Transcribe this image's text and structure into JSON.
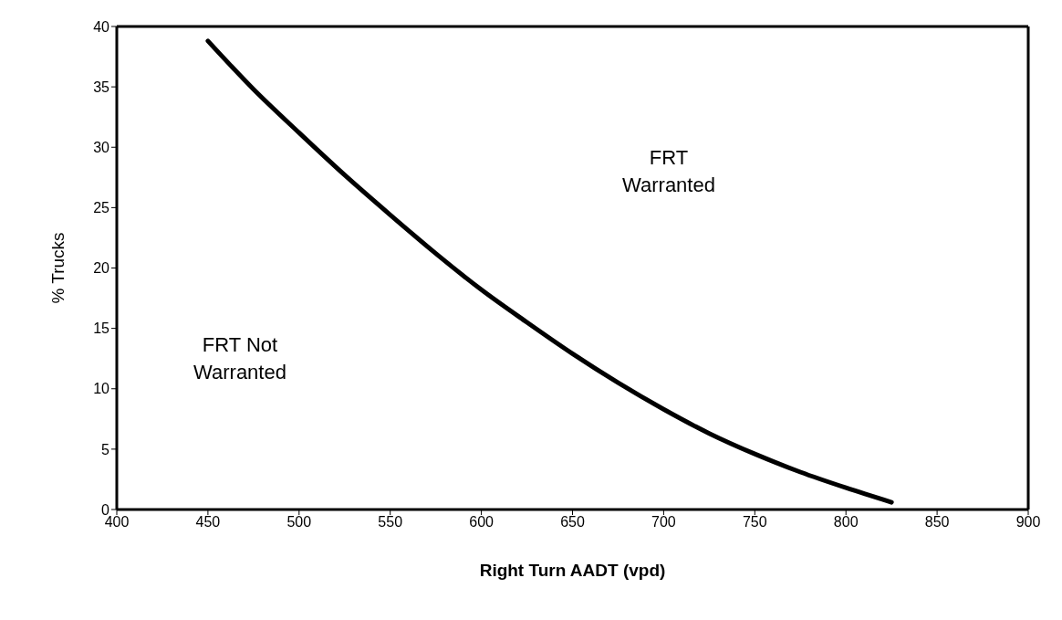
{
  "chart_data": {
    "type": "line",
    "xlabel": "Right Turn AADT (vpd)",
    "ylabel": "% Trucks",
    "annotations": [
      "FRT\nWarranted",
      "FRT Not\nWarranted"
    ],
    "x": [
      450,
      475,
      500,
      525,
      550,
      575,
      600,
      625,
      650,
      675,
      700,
      725,
      750,
      775,
      800,
      825
    ],
    "series": [
      {
        "color": "#000000",
        "values": [
          38.8,
          34.8,
          31.2,
          27.7,
          24.4,
          21.2,
          18.2,
          15.5,
          12.9,
          10.5,
          8.3,
          6.3,
          4.6,
          3.1,
          1.8,
          0.6
        ]
      }
    ],
    "xlim": [
      400,
      900
    ],
    "xticks": [
      400,
      450,
      500,
      550,
      600,
      650,
      700,
      750,
      800,
      850,
      900
    ],
    "ylim": [
      0,
      40
    ],
    "yticks": [
      0,
      5,
      10,
      15,
      20,
      25,
      30,
      35,
      40
    ],
    "grid": false,
    "legend": false,
    "marker": "none",
    "line_style": "solid"
  }
}
